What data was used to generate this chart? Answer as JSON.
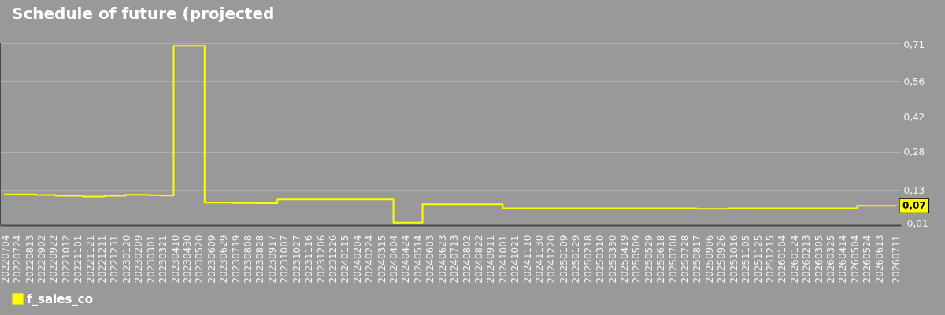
{
  "chart_data": {
    "type": "step",
    "title": "Schedule of future (projected",
    "x": [
      "2022-07-04",
      "2022-08-24",
      "2022-09-26",
      "2022-11-09",
      "2022-12-15",
      "2023-01-19",
      "2023-02-25",
      "2023-03-18",
      "2023-04-08",
      "2023-05-29",
      "2023-07-15",
      "2023-08-20",
      "2023-09-26",
      "2024-04-04",
      "2024-05-22",
      "2024-10-01",
      "2025-08-17",
      "2025-10-07",
      "2026-05-08",
      "2026-07-11"
    ],
    "series": [
      {
        "name": "f_sales_co",
        "color": "#ffff00",
        "values": [
          0.112,
          0.11,
          0.107,
          0.104,
          0.107,
          0.111,
          0.109,
          0.108,
          0.7,
          0.08,
          0.078,
          0.077,
          0.092,
          0.0,
          0.073,
          0.057,
          0.055,
          0.057,
          0.067,
          0.067
        ],
        "value_labels": [
          null,
          null,
          null,
          null,
          null,
          null,
          null,
          null,
          null,
          null,
          null,
          null,
          null,
          null,
          null,
          null,
          null,
          null,
          null,
          "0,07"
        ]
      }
    ],
    "xlim": [
      "2022-06-26",
      "2026-07-19"
    ],
    "xticks": [
      {
        "value": "2022-07-04",
        "label": "20220704"
      },
      {
        "value": "2022-07-24",
        "label": "20220724"
      },
      {
        "value": "2022-08-13",
        "label": "20220813"
      },
      {
        "value": "2022-09-02",
        "label": "20220902"
      },
      {
        "value": "2022-09-22",
        "label": "20220922"
      },
      {
        "value": "2022-10-12",
        "label": "20221012"
      },
      {
        "value": "2022-11-01",
        "label": "20221101"
      },
      {
        "value": "2022-11-21",
        "label": "20221121"
      },
      {
        "value": "2022-12-11",
        "label": "20221211"
      },
      {
        "value": "2022-12-31",
        "label": "20221231"
      },
      {
        "value": "2023-01-20",
        "label": "20230120"
      },
      {
        "value": "2023-02-09",
        "label": "20230209"
      },
      {
        "value": "2023-03-01",
        "label": "20230301"
      },
      {
        "value": "2023-03-21",
        "label": "20230321"
      },
      {
        "value": "2023-04-10",
        "label": "20230410"
      },
      {
        "value": "2023-04-30",
        "label": "20230430"
      },
      {
        "value": "2023-05-20",
        "label": "20230520"
      },
      {
        "value": "2023-06-09",
        "label": "20230609"
      },
      {
        "value": "2023-06-29",
        "label": "20230629"
      },
      {
        "value": "2023-07-19",
        "label": "20230719"
      },
      {
        "value": "2023-08-08",
        "label": "20230808"
      },
      {
        "value": "2023-08-28",
        "label": "20230828"
      },
      {
        "value": "2023-09-17",
        "label": "20230917"
      },
      {
        "value": "2023-10-07",
        "label": "20231007"
      },
      {
        "value": "2023-10-27",
        "label": "20231027"
      },
      {
        "value": "2023-11-16",
        "label": "20231116"
      },
      {
        "value": "2023-12-06",
        "label": "20231206"
      },
      {
        "value": "2023-12-26",
        "label": "20231226"
      },
      {
        "value": "2024-01-15",
        "label": "20240115"
      },
      {
        "value": "2024-02-04",
        "label": "20240204"
      },
      {
        "value": "2024-02-24",
        "label": "20240224"
      },
      {
        "value": "2024-03-15",
        "label": "20240315"
      },
      {
        "value": "2024-04-04",
        "label": "20240404"
      },
      {
        "value": "2024-04-24",
        "label": "20240424"
      },
      {
        "value": "2024-05-14",
        "label": "20240514"
      },
      {
        "value": "2024-06-03",
        "label": "20240603"
      },
      {
        "value": "2024-06-23",
        "label": "20240623"
      },
      {
        "value": "2024-07-13",
        "label": "20240713"
      },
      {
        "value": "2024-08-02",
        "label": "20240802"
      },
      {
        "value": "2024-08-22",
        "label": "20240822"
      },
      {
        "value": "2024-09-11",
        "label": "20240911"
      },
      {
        "value": "2024-10-01",
        "label": "20241001"
      },
      {
        "value": "2024-10-21",
        "label": "20241021"
      },
      {
        "value": "2024-11-10",
        "label": "20241110"
      },
      {
        "value": "2024-11-30",
        "label": "20241130"
      },
      {
        "value": "2024-12-20",
        "label": "20241220"
      },
      {
        "value": "2025-01-09",
        "label": "20250109"
      },
      {
        "value": "2025-01-29",
        "label": "20250129"
      },
      {
        "value": "2025-02-18",
        "label": "20250218"
      },
      {
        "value": "2025-03-10",
        "label": "20250310"
      },
      {
        "value": "2025-03-30",
        "label": "20250330"
      },
      {
        "value": "2025-04-19",
        "label": "20250419"
      },
      {
        "value": "2025-05-09",
        "label": "20250509"
      },
      {
        "value": "2025-05-29",
        "label": "20250529"
      },
      {
        "value": "2025-06-18",
        "label": "20250618"
      },
      {
        "value": "2025-07-08",
        "label": "20250708"
      },
      {
        "value": "2025-07-28",
        "label": "20250728"
      },
      {
        "value": "2025-08-17",
        "label": "20250817"
      },
      {
        "value": "2025-09-06",
        "label": "20250906"
      },
      {
        "value": "2025-09-26",
        "label": "20250926"
      },
      {
        "value": "2025-10-16",
        "label": "20251016"
      },
      {
        "value": "2025-11-05",
        "label": "20251105"
      },
      {
        "value": "2025-11-25",
        "label": "20251125"
      },
      {
        "value": "2025-12-15",
        "label": "20251215"
      },
      {
        "value": "2026-01-04",
        "label": "20260104"
      },
      {
        "value": "2026-01-24",
        "label": "20260124"
      },
      {
        "value": "2026-02-13",
        "label": "20260213"
      },
      {
        "value": "2026-03-05",
        "label": "20260305"
      },
      {
        "value": "2026-03-25",
        "label": "20260325"
      },
      {
        "value": "2026-04-14",
        "label": "20260414"
      },
      {
        "value": "2026-05-04",
        "label": "20260504"
      },
      {
        "value": "2026-05-24",
        "label": "20260524"
      },
      {
        "value": "2026-06-13",
        "label": "20260613"
      },
      {
        "value": "2026-07-11",
        "label": "20260711"
      }
    ],
    "ylim": [
      -0.01,
      0.71
    ],
    "yticks": [
      {
        "value": -0.01,
        "label": "-0,01"
      },
      {
        "value": 0.13,
        "label": "0,13"
      },
      {
        "value": 0.28,
        "label": "0,28"
      },
      {
        "value": 0.42,
        "label": "0,42"
      },
      {
        "value": 0.56,
        "label": "0,56"
      },
      {
        "value": 0.71,
        "label": "0,71"
      }
    ],
    "grid": "y",
    "legend": "bottom left"
  }
}
